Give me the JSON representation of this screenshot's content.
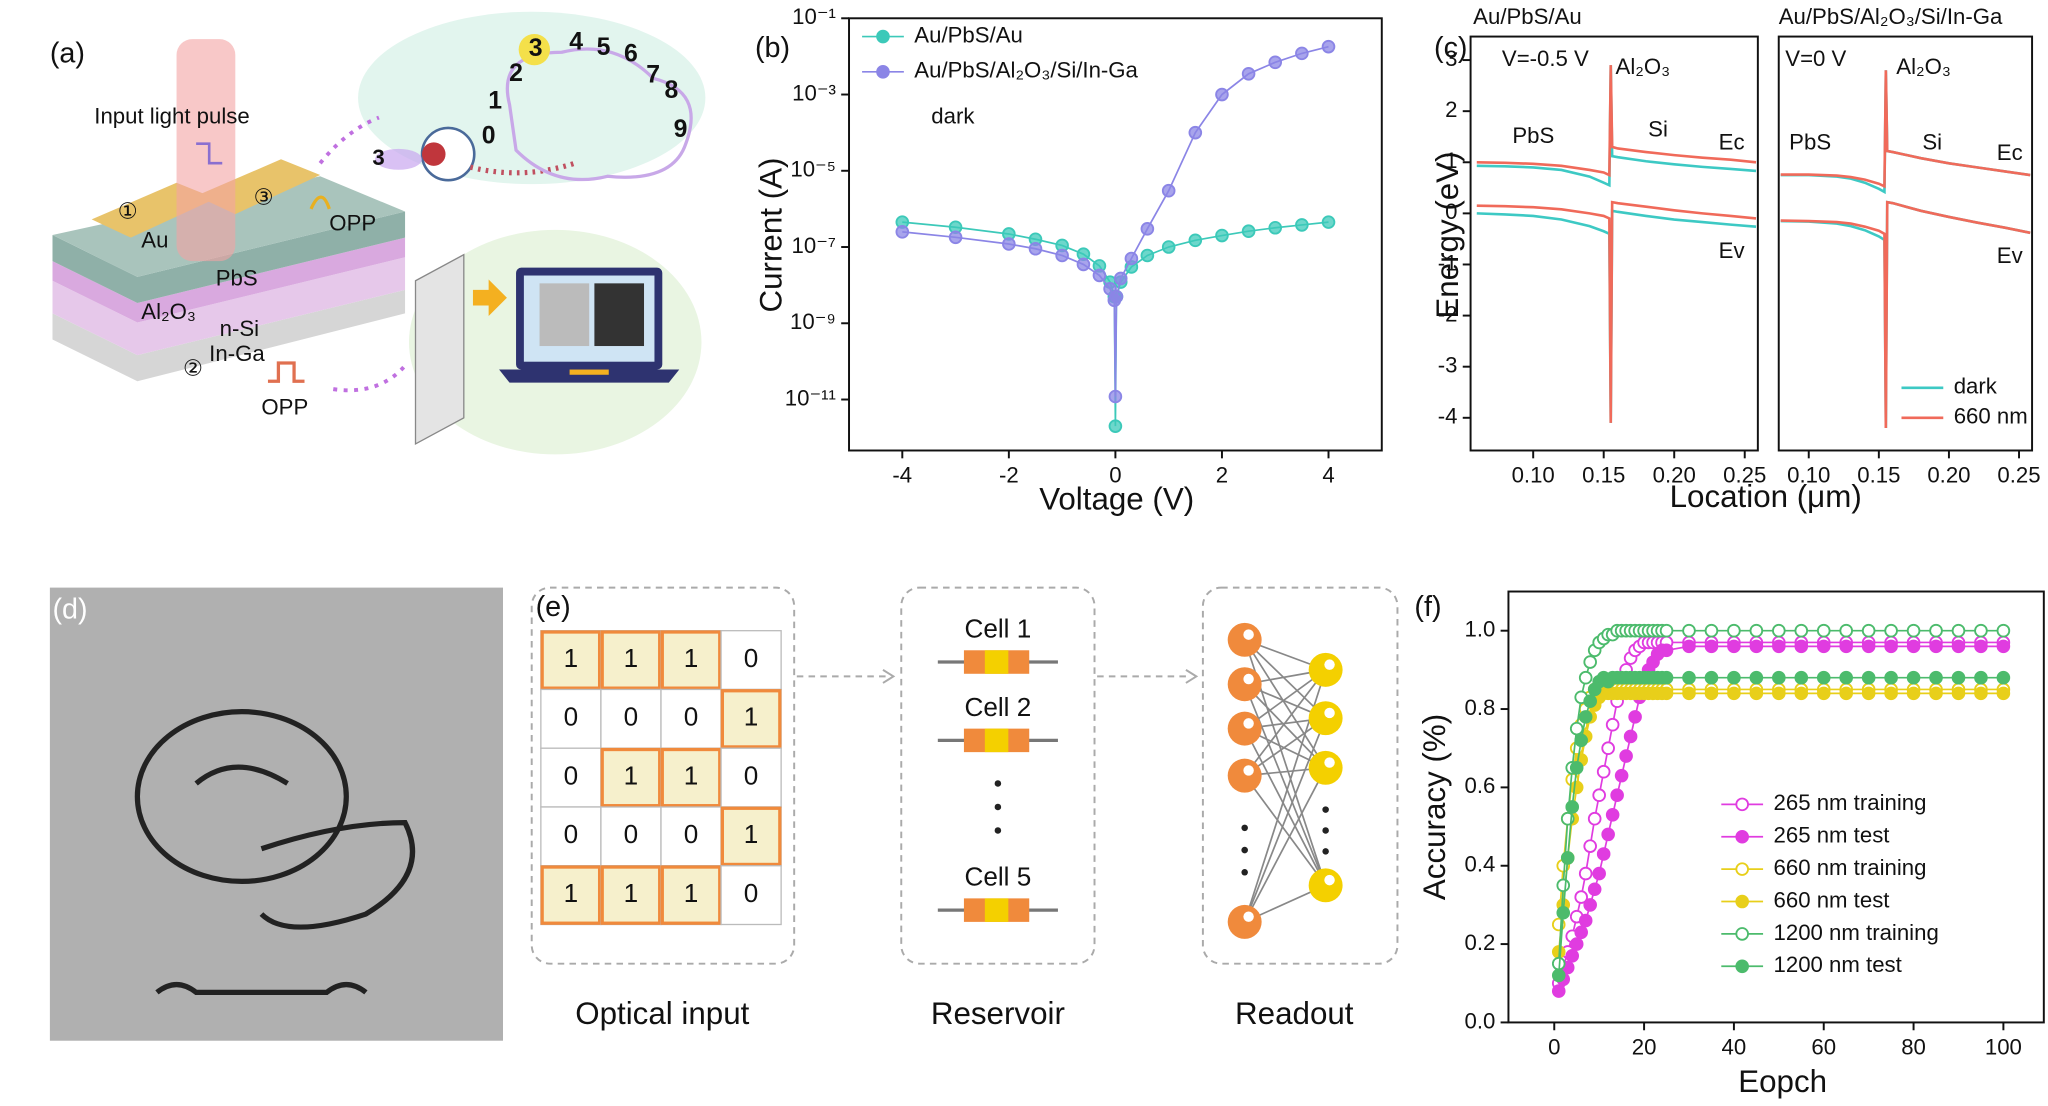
{
  "chart_data": [
    {
      "type": "line",
      "panel_label": "(b)",
      "xlabel": "Voltage (V)",
      "ylabel": "Current (A)",
      "annotation": "dark",
      "log_y": true,
      "xlim": [
        -5,
        5
      ],
      "xticks": [
        -4,
        -2,
        0,
        2,
        4
      ],
      "ylim": [
        4.6e-13,
        0.1
      ],
      "yticks": [
        {
          "value": 1e-11,
          "label": "10⁻¹¹"
        },
        {
          "value": 1e-09,
          "label": "10⁻⁹"
        },
        {
          "value": 1e-07,
          "label": "10⁻⁷"
        },
        {
          "value": 1e-05,
          "label": "10⁻⁵"
        },
        {
          "value": 0.001,
          "label": "10⁻³"
        },
        {
          "value": 0.1,
          "label": "10⁻¹"
        }
      ],
      "legend": "upper left",
      "x": [
        -4,
        -3,
        -2,
        -1.5,
        -1,
        -0.6,
        -0.3,
        -0.1,
        -0.02,
        0,
        0.02,
        0.1,
        0.3,
        0.6,
        1,
        1.5,
        2,
        2.5,
        3,
        3.5,
        4
      ],
      "series": [
        {
          "name": "Au/PbS/Au",
          "color": "#3cc9b9",
          "values": [
            4.5e-07,
            3.3e-07,
            2.2e-07,
            1.6e-07,
            1.1e-07,
            6.5e-08,
            3.2e-08,
            1.2e-08,
            5e-09,
            2e-12,
            5e-09,
            1.2e-08,
            3e-08,
            6e-08,
            1e-07,
            1.5e-07,
            2e-07,
            2.6e-07,
            3.2e-07,
            3.8e-07,
            4.5e-07
          ]
        },
        {
          "name": "Au/PbS/Al₂O₃/Si/In-Ga",
          "color": "#8b85e6",
          "values": [
            2.5e-07,
            1.8e-07,
            1.2e-07,
            9e-08,
            6e-08,
            3.5e-08,
            1.8e-08,
            8e-09,
            4e-09,
            1.2e-11,
            5e-09,
            1.5e-08,
            5e-08,
            3e-07,
            3e-06,
            0.0001,
            0.001,
            0.0035,
            0.007,
            0.012,
            0.018
          ]
        }
      ]
    },
    {
      "type": "band",
      "panel_label": "(c)",
      "title": "Au/PbS/Au",
      "ylabel": "Energy (eV)",
      "xlabel": "Location (μm)",
      "annotations": [
        "V=-0.5 V",
        "Al₂O₃",
        "PbS",
        "Si",
        "Ec",
        "Ev"
      ],
      "xlim": [
        0.0556,
        0.2593
      ],
      "xticks": [
        {
          "value": 0.1,
          "label": "0.10"
        },
        0.15,
        {
          "value": 0.2,
          "label": "0.20"
        },
        0.25
      ],
      "ylim": [
        -4.64,
        3.46
      ],
      "yticks": [
        -4,
        -3,
        -2,
        -1,
        0,
        1,
        2,
        3
      ],
      "x": [
        0.06,
        0.08,
        0.1,
        0.12,
        0.14,
        0.15,
        0.154,
        0.155,
        0.156,
        0.16,
        0.18,
        0.2,
        0.22,
        0.24,
        0.258
      ],
      "series": [
        {
          "color": "#3dc9c4",
          "values": [
            0.93,
            0.92,
            0.9,
            0.85,
            0.72,
            0.6,
            0.55,
            2.9,
            1.12,
            1.1,
            1.02,
            0.96,
            0.91,
            0.87,
            0.83
          ],
          "values_valence": [
            0,
            -0.02,
            -0.05,
            -0.12,
            -0.25,
            -0.35,
            -0.4,
            -4.1,
            0.05,
            0.03,
            -0.05,
            -0.12,
            -0.17,
            -0.22,
            -0.26
          ]
        },
        {
          "color": "#f06a5a",
          "values": [
            1,
            0.99,
            0.97,
            0.93,
            0.85,
            0.8,
            0.75,
            2.9,
            1.3,
            1.27,
            1.2,
            1.14,
            1.09,
            1.05,
            1
          ],
          "values_valence": [
            0.15,
            0.14,
            0.12,
            0.08,
            0,
            -0.05,
            -0.1,
            -4.1,
            0.22,
            0.2,
            0.13,
            0.06,
            0,
            -0.05,
            -0.1
          ]
        }
      ]
    },
    {
      "type": "band",
      "title": "Au/PbS/Al₂O₃/Si/In-Ga",
      "annotations": [
        "V=0 V",
        "Al₂O₃",
        "PbS",
        "Si",
        "Ec",
        "Ev"
      ],
      "xlim": [
        0.0786,
        0.2593
      ],
      "xticks": [
        {
          "value": 0.1,
          "label": "0.10"
        },
        0.15,
        {
          "value": 0.2,
          "label": "0.20"
        },
        0.25
      ],
      "ylim": [
        -4.64,
        3.46
      ],
      "legend": "lower right",
      "x": [
        0.08,
        0.1,
        0.12,
        0.13,
        0.14,
        0.15,
        0.154,
        0.155,
        0.156,
        0.16,
        0.18,
        0.2,
        0.22,
        0.24,
        0.258
      ],
      "series": [
        {
          "name": "dark",
          "color": "#3dc9c4",
          "values": [
            0.75,
            0.75,
            0.72,
            0.68,
            0.6,
            0.48,
            0.42,
            2.8,
            1.22,
            1.2,
            1.08,
            0.98,
            0.9,
            0.82,
            0.75
          ],
          "values_valence": [
            -0.15,
            -0.16,
            -0.2,
            -0.25,
            -0.33,
            -0.45,
            -0.52,
            -4.2,
            0.22,
            0.2,
            0.05,
            -0.07,
            -0.18,
            -0.28,
            -0.38
          ]
        },
        {
          "name": "660 nm",
          "color": "#f06a5a",
          "values": [
            0.76,
            0.76,
            0.74,
            0.71,
            0.66,
            0.58,
            0.53,
            2.8,
            1.22,
            1.2,
            1.08,
            0.98,
            0.9,
            0.82,
            0.75
          ],
          "values_valence": [
            -0.14,
            -0.15,
            -0.17,
            -0.2,
            -0.26,
            -0.34,
            -0.4,
            -4.2,
            0.22,
            0.2,
            0.05,
            -0.07,
            -0.18,
            -0.28,
            -0.38
          ]
        }
      ]
    },
    {
      "type": "line",
      "panel_label": "(f)",
      "xlabel": "Eopch",
      "ylabel": "Accuracy (%)",
      "legend": "lower right",
      "xlim": [
        -10.2,
        109
      ],
      "xticks": [
        0,
        20,
        40,
        60,
        80,
        100
      ],
      "ylim": [
        0,
        1.1
      ],
      "yticks": [
        {
          "value": 0,
          "label": "0.0"
        },
        0.2,
        0.4,
        0.6,
        0.8,
        {
          "value": 1,
          "label": "1.0"
        }
      ],
      "x": [
        1,
        2,
        3,
        4,
        5,
        6,
        7,
        8,
        9,
        10,
        11,
        12,
        13,
        14,
        15,
        16,
        17,
        18,
        19,
        20,
        21,
        22,
        23,
        24,
        25,
        30,
        35,
        40,
        45,
        50,
        55,
        60,
        65,
        70,
        75,
        80,
        85,
        90,
        95,
        100
      ],
      "series": [
        {
          "name": "265 nm training",
          "color": "#e03ce0",
          "marker": "open",
          "values": [
            0.1,
            0.14,
            0.18,
            0.22,
            0.27,
            0.32,
            0.38,
            0.45,
            0.52,
            0.58,
            0.64,
            0.7,
            0.76,
            0.82,
            0.87,
            0.9,
            0.93,
            0.95,
            0.96,
            0.97,
            0.97,
            0.97,
            0.97,
            0.97,
            0.97,
            0.97,
            0.97,
            0.97,
            0.97,
            0.97,
            0.97,
            0.97,
            0.97,
            0.97,
            0.97,
            0.97,
            0.97,
            0.97,
            0.97,
            0.97
          ]
        },
        {
          "name": "265 nm test",
          "color": "#e03ce0",
          "marker": "filled",
          "values": [
            0.08,
            0.11,
            0.14,
            0.17,
            0.2,
            0.23,
            0.26,
            0.3,
            0.34,
            0.38,
            0.43,
            0.48,
            0.53,
            0.58,
            0.63,
            0.68,
            0.73,
            0.78,
            0.83,
            0.87,
            0.9,
            0.92,
            0.94,
            0.95,
            0.95,
            0.96,
            0.96,
            0.96,
            0.96,
            0.96,
            0.96,
            0.96,
            0.96,
            0.96,
            0.96,
            0.96,
            0.96,
            0.96,
            0.96,
            0.96
          ]
        },
        {
          "name": "660 nm training",
          "color": "#e8cf1a",
          "marker": "open",
          "values": [
            0.25,
            0.4,
            0.52,
            0.62,
            0.7,
            0.76,
            0.8,
            0.83,
            0.85,
            0.86,
            0.86,
            0.85,
            0.85,
            0.85,
            0.85,
            0.85,
            0.85,
            0.85,
            0.85,
            0.85,
            0.85,
            0.85,
            0.85,
            0.85,
            0.85,
            0.85,
            0.85,
            0.85,
            0.85,
            0.85,
            0.85,
            0.85,
            0.85,
            0.85,
            0.85,
            0.85,
            0.85,
            0.85,
            0.85,
            0.85
          ]
        },
        {
          "name": "660 nm test",
          "color": "#e8cf1a",
          "marker": "filled",
          "values": [
            0.18,
            0.3,
            0.42,
            0.52,
            0.6,
            0.67,
            0.73,
            0.78,
            0.81,
            0.83,
            0.84,
            0.84,
            0.84,
            0.84,
            0.84,
            0.84,
            0.84,
            0.84,
            0.84,
            0.84,
            0.84,
            0.84,
            0.84,
            0.84,
            0.84,
            0.84,
            0.84,
            0.84,
            0.84,
            0.84,
            0.84,
            0.84,
            0.84,
            0.84,
            0.84,
            0.84,
            0.84,
            0.84,
            0.84,
            0.84
          ]
        },
        {
          "name": "1200 nm training",
          "color": "#4cbb6c",
          "marker": "open",
          "values": [
            0.15,
            0.35,
            0.52,
            0.65,
            0.75,
            0.83,
            0.88,
            0.92,
            0.95,
            0.97,
            0.98,
            0.99,
            0.99,
            1,
            1,
            1,
            1,
            1,
            1,
            1,
            1,
            1,
            1,
            1,
            1,
            1,
            1,
            1,
            1,
            1,
            1,
            1,
            1,
            1,
            1,
            1,
            1,
            1,
            1,
            1
          ]
        },
        {
          "name": "1200 nm test",
          "color": "#4cbb6c",
          "marker": "filled",
          "values": [
            0.12,
            0.28,
            0.42,
            0.55,
            0.65,
            0.72,
            0.78,
            0.82,
            0.85,
            0.87,
            0.88,
            0.87,
            0.88,
            0.88,
            0.88,
            0.88,
            0.88,
            0.88,
            0.88,
            0.88,
            0.88,
            0.88,
            0.88,
            0.88,
            0.88,
            0.88,
            0.88,
            0.88,
            0.88,
            0.88,
            0.88,
            0.88,
            0.88,
            0.88,
            0.88,
            0.88,
            0.88,
            0.88,
            0.88,
            0.88
          ]
        }
      ]
    }
  ],
  "panel_a": {
    "label": "(a)",
    "light": "Input light pulse",
    "electrode1": "①",
    "au": "Au",
    "electrode3": "③",
    "opp_top": "OPP",
    "pbs": "PbS",
    "al2o3": "Al₂O₃",
    "nsi": "n-Si",
    "electrode2": "②",
    "inga": "In-Ga",
    "opp_bottom": "OPP",
    "eye_digit": "3",
    "digits": [
      "0",
      "1",
      "2",
      "3",
      "4",
      "5",
      "6",
      "7",
      "8",
      "9"
    ]
  },
  "panel_d": {
    "label": "(d)"
  },
  "panel_e": {
    "label": "(e)",
    "table": {
      "rows": [
        [
          1,
          1,
          1,
          0
        ],
        [
          0,
          0,
          0,
          1
        ],
        [
          0,
          1,
          1,
          0
        ],
        [
          0,
          0,
          0,
          1
        ],
        [
          1,
          1,
          1,
          0
        ]
      ]
    },
    "cells": [
      "Cell 1",
      "Cell 2",
      "Cell 5"
    ],
    "captions": [
      "Optical input",
      "Reservoir",
      "Readout"
    ]
  }
}
